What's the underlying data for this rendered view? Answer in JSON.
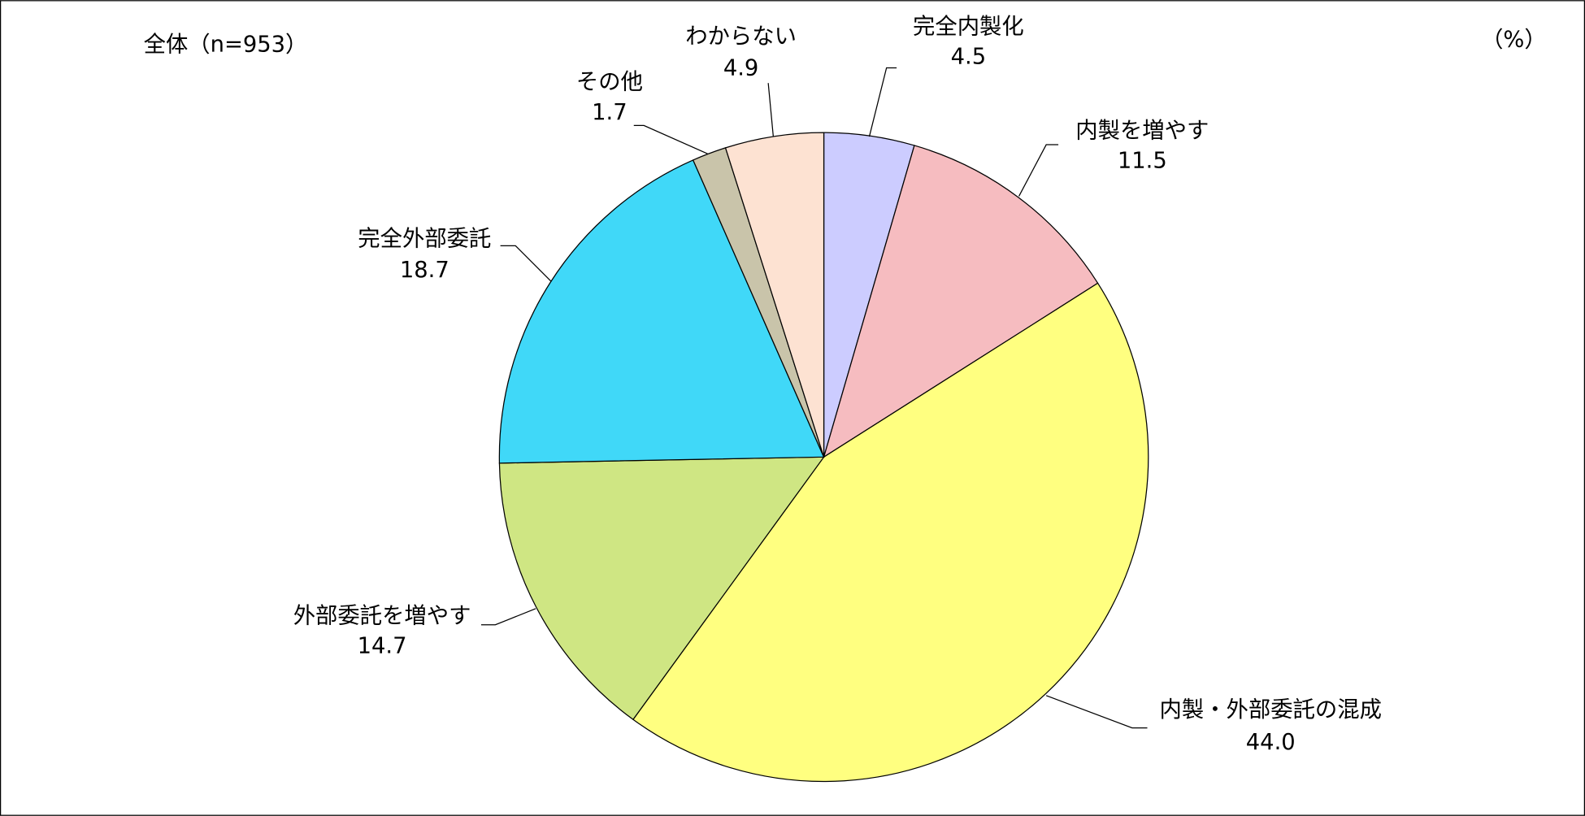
{
  "chart_data": {
    "type": "pie",
    "title": "全体（n=953）",
    "unit_label": "（%）",
    "categories": [
      "完全内製化",
      "内製を増やす",
      "内製・外部委託の混成",
      "外部委託を増やす",
      "完全外部委託",
      "その他",
      "わからない"
    ],
    "values": [
      4.5,
      11.5,
      44.0,
      14.7,
      18.7,
      1.7,
      4.9
    ],
    "value_labels": [
      "4.5",
      "11.5",
      "44.0",
      "14.7",
      "18.7",
      "1.7",
      "4.9"
    ],
    "colors": [
      "#ccccff",
      "#f6bcc0",
      "#ffff80",
      "#cfe683",
      "#40d8f8",
      "#c9c4aa",
      "#fde2d2"
    ]
  }
}
